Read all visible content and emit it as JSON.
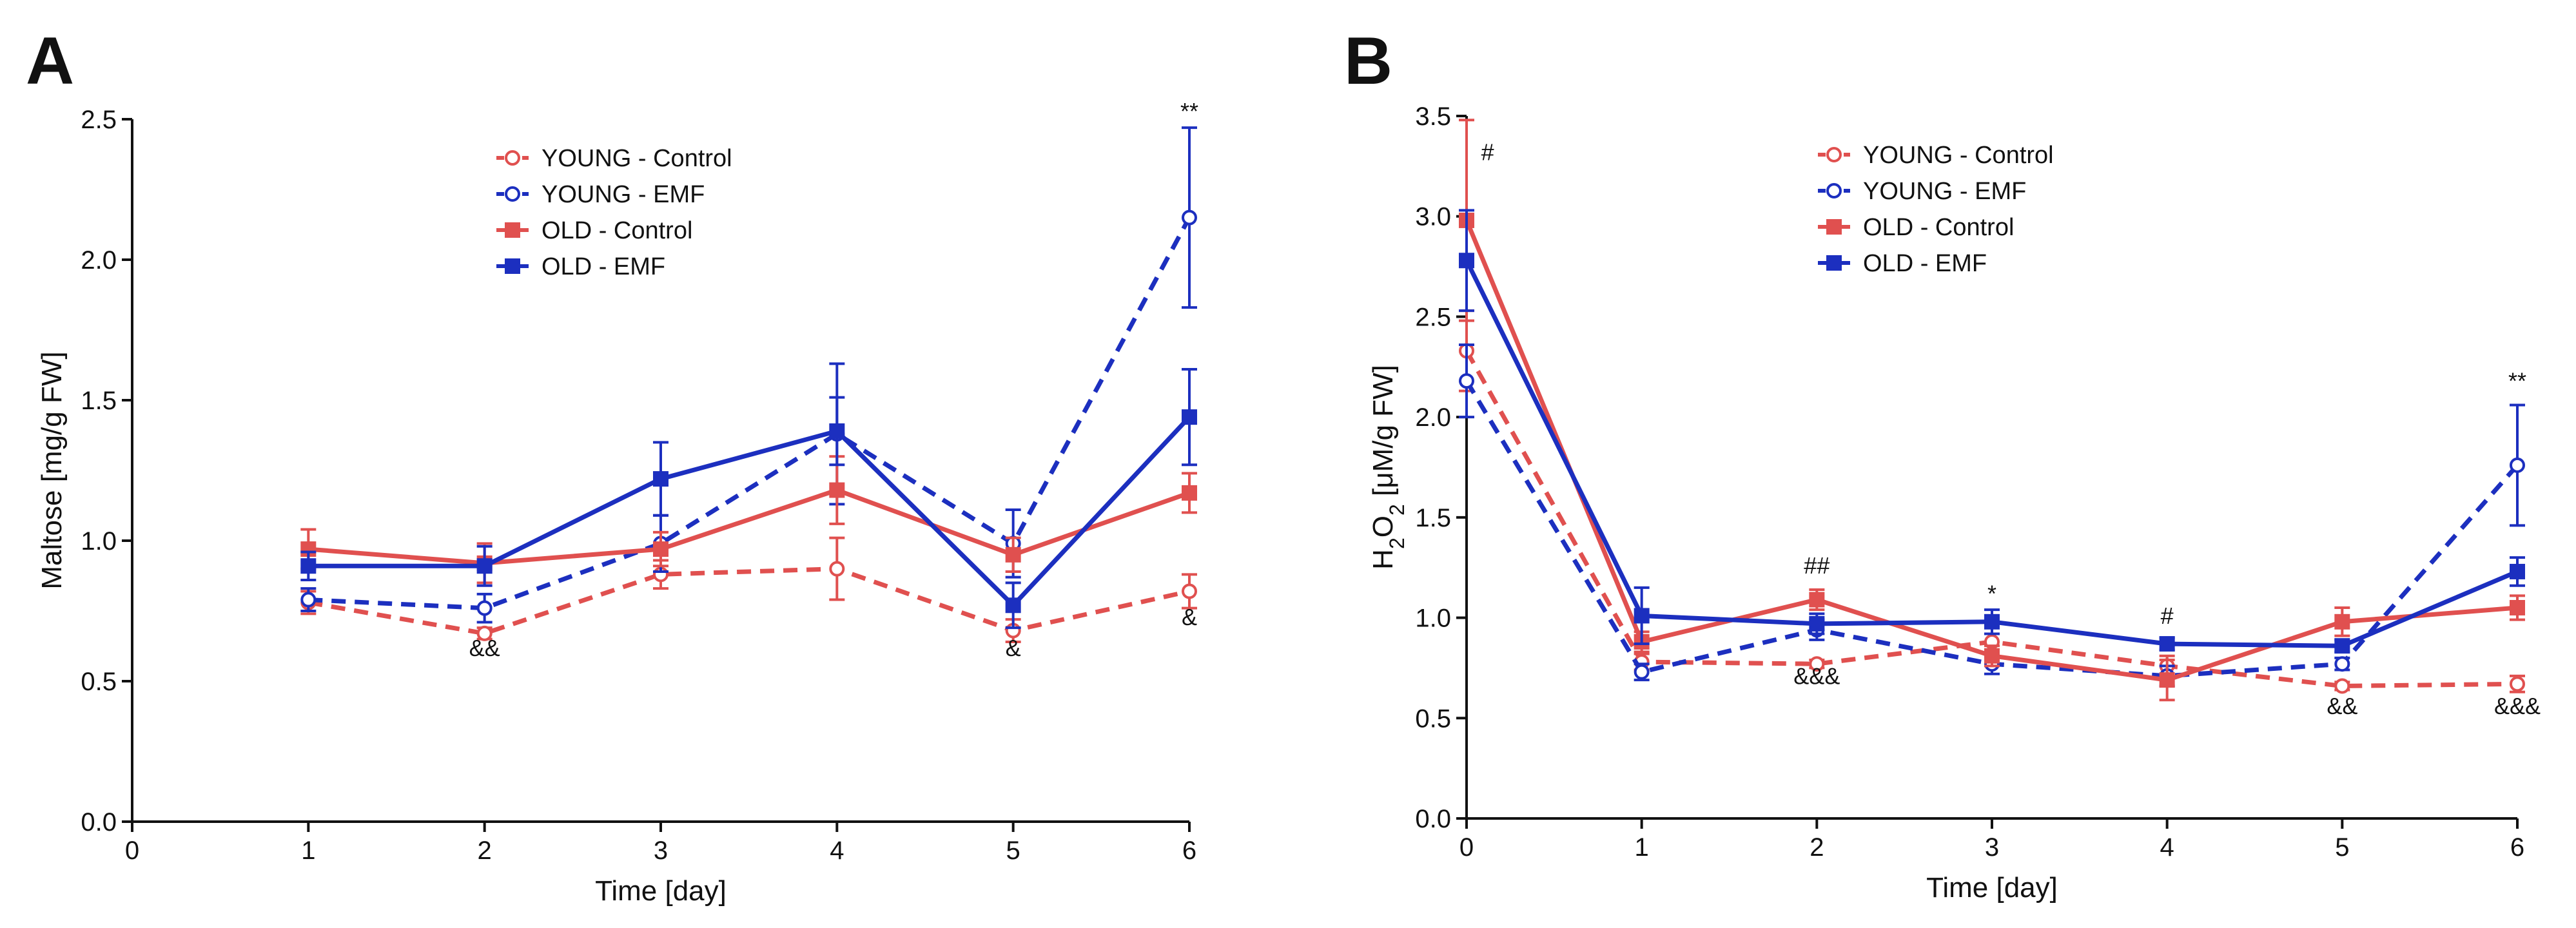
{
  "chart_data": [
    {
      "panel": "A",
      "type": "line",
      "title": "",
      "xlabel": "Time [day]",
      "ylabel": "Maltose [mg/g FW]",
      "xlim": [
        0,
        6
      ],
      "ylim": [
        0,
        2.5
      ],
      "xticks": [
        0,
        1,
        2,
        3,
        4,
        5,
        6
      ],
      "yticks": [
        0.0,
        0.5,
        1.0,
        1.5,
        2.0,
        2.5
      ],
      "xtick_labels": [
        "0",
        "1",
        "2",
        "3",
        "4",
        "5",
        "6"
      ],
      "ytick_labels": [
        "0.0",
        "0.5",
        "1.0",
        "1.5",
        "2.0",
        "2.5"
      ],
      "legend_position": "top-center",
      "grid": false,
      "series": [
        {
          "name": "YOUNG - Control",
          "color": "#e0504f",
          "dashed": true,
          "marker": "open-circle",
          "x": [
            1,
            2,
            3,
            4,
            5,
            6
          ],
          "values": [
            0.78,
            0.67,
            0.88,
            0.9,
            0.68,
            0.82
          ],
          "errors": [
            0.04,
            0.02,
            0.05,
            0.11,
            0.04,
            0.06
          ]
        },
        {
          "name": "YOUNG - EMF",
          "color": "#1c2fbf",
          "dashed": true,
          "marker": "open-circle",
          "x": [
            1,
            2,
            3,
            4,
            5,
            6
          ],
          "values": [
            0.79,
            0.76,
            0.99,
            1.38,
            0.99,
            2.15
          ],
          "errors": [
            0.04,
            0.05,
            0.1,
            0.25,
            0.12,
            0.32
          ]
        },
        {
          "name": "OLD - Control",
          "color": "#e0504f",
          "dashed": false,
          "marker": "filled-square",
          "x": [
            1,
            2,
            3,
            4,
            5,
            6
          ],
          "values": [
            0.97,
            0.92,
            0.97,
            1.18,
            0.95,
            1.17
          ],
          "errors": [
            0.07,
            0.07,
            0.06,
            0.12,
            0.06,
            0.07
          ]
        },
        {
          "name": "OLD - EMF",
          "color": "#1c2fbf",
          "dashed": false,
          "marker": "filled-square",
          "x": [
            1,
            2,
            3,
            4,
            5,
            6
          ],
          "values": [
            0.91,
            0.91,
            1.22,
            1.39,
            0.77,
            1.44
          ],
          "errors": [
            0.05,
            0.07,
            0.13,
            0.12,
            0.08,
            0.17
          ]
        }
      ],
      "annotations": [
        {
          "text": "&&",
          "x": 2,
          "y": 0.59
        },
        {
          "text": "&",
          "x": 5,
          "y": 0.59
        },
        {
          "text": "&",
          "x": 6,
          "y": 0.7
        },
        {
          "text": "**",
          "x": 6,
          "y": 2.5
        }
      ]
    },
    {
      "panel": "B",
      "type": "line",
      "title": "",
      "xlabel": "Time [day]",
      "ylabel": "H2O2 [μM/g FW]",
      "ylabel_parts": [
        "H",
        "2",
        "O",
        "2",
        " [μM/g FW]"
      ],
      "xlim": [
        0,
        6
      ],
      "ylim": [
        0,
        3.5
      ],
      "xticks": [
        0,
        1,
        2,
        3,
        4,
        5,
        6
      ],
      "yticks": [
        0.0,
        0.5,
        1.0,
        1.5,
        2.0,
        2.5,
        3.0,
        3.5
      ],
      "xtick_labels": [
        "0",
        "1",
        "2",
        "3",
        "4",
        "5",
        "6"
      ],
      "ytick_labels": [
        "0.0",
        "0.5",
        "1.0",
        "1.5",
        "2.0",
        "2.5",
        "3.0",
        "3.5"
      ],
      "legend_position": "top-center",
      "grid": false,
      "series": [
        {
          "name": "YOUNG - Control",
          "color": "#e0504f",
          "dashed": true,
          "marker": "open-circle",
          "x": [
            0,
            1,
            2,
            3,
            4,
            5,
            6
          ],
          "values": [
            2.33,
            0.78,
            0.77,
            0.88,
            0.76,
            0.66,
            0.67
          ],
          "errors": [
            0.2,
            0.04,
            0.02,
            0.04,
            0.05,
            0.02,
            0.04
          ]
        },
        {
          "name": "YOUNG - EMF",
          "color": "#1c2fbf",
          "dashed": true,
          "marker": "open-circle",
          "x": [
            0,
            1,
            2,
            3,
            4,
            5,
            6
          ],
          "values": [
            2.18,
            0.73,
            0.94,
            0.77,
            0.71,
            0.77,
            1.76
          ],
          "errors": [
            0.18,
            0.04,
            0.05,
            0.05,
            0.05,
            0.03,
            0.3
          ]
        },
        {
          "name": "OLD - Control",
          "color": "#e0504f",
          "dashed": false,
          "marker": "filled-square",
          "x": [
            0,
            1,
            2,
            3,
            4,
            5,
            6
          ],
          "values": [
            2.98,
            0.88,
            1.09,
            0.81,
            0.69,
            0.98,
            1.05
          ],
          "errors": [
            0.5,
            0.05,
            0.05,
            0.05,
            0.1,
            0.07,
            0.06
          ]
        },
        {
          "name": "OLD - EMF",
          "color": "#1c2fbf",
          "dashed": false,
          "marker": "filled-square",
          "x": [
            0,
            1,
            2,
            3,
            4,
            5,
            6
          ],
          "values": [
            2.78,
            1.01,
            0.97,
            0.98,
            0.87,
            0.86,
            1.23
          ],
          "errors": [
            0.25,
            0.14,
            0.05,
            0.06,
            0.03,
            0.03,
            0.07
          ]
        }
      ],
      "annotations": [
        {
          "text": "#",
          "x": 0.12,
          "y": 3.28
        },
        {
          "text": "##",
          "x": 2,
          "y": 1.22
        },
        {
          "text": "&&&",
          "x": 2,
          "y": 0.67
        },
        {
          "text": "*",
          "x": 3,
          "y": 1.08
        },
        {
          "text": "#",
          "x": 4,
          "y": 0.97
        },
        {
          "text": "&&",
          "x": 5,
          "y": 0.52
        },
        {
          "text": "&&&",
          "x": 6,
          "y": 0.52
        },
        {
          "text": "**",
          "x": 6,
          "y": 2.14
        }
      ]
    }
  ]
}
